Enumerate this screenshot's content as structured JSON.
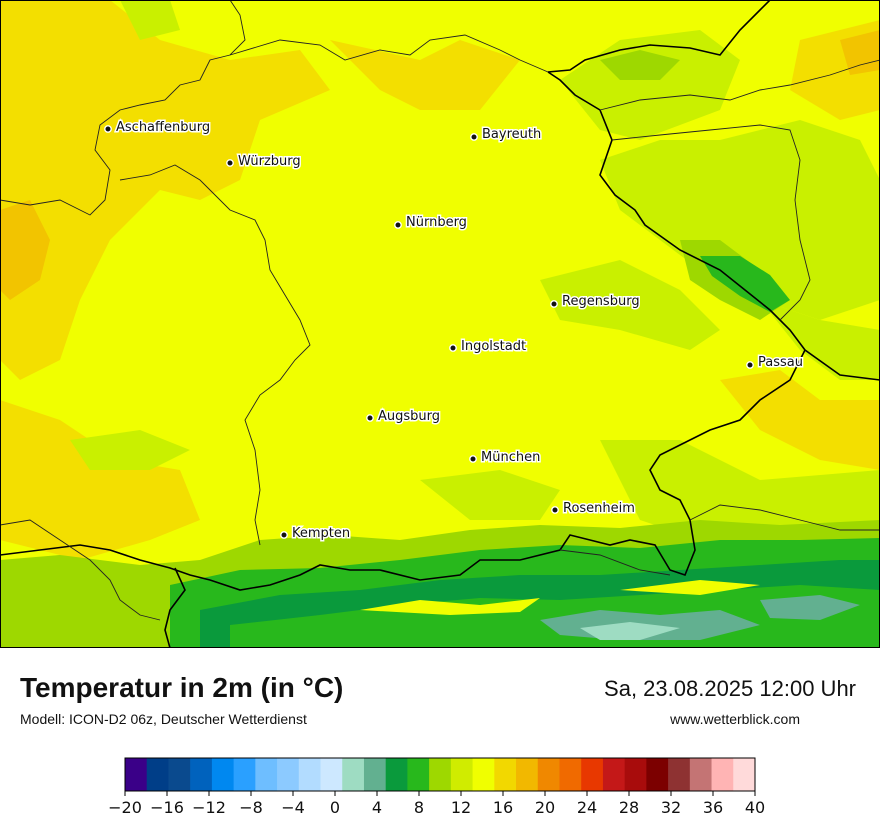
{
  "map": {
    "cities": [
      {
        "name": "Aschaffenburg"
      },
      {
        "name": "Würzburg"
      },
      {
        "name": "Bayreuth"
      },
      {
        "name": "Nürnberg"
      },
      {
        "name": "Regensburg"
      },
      {
        "name": "Ingolstadt"
      },
      {
        "name": "Passau"
      },
      {
        "name": "Augsburg"
      },
      {
        "name": "München"
      },
      {
        "name": "Rosenheim"
      },
      {
        "name": "Kempten"
      }
    ],
    "colors": {
      "base_field": "#f0ff00",
      "warm_patches": "#f3df00",
      "warmer_patches": "#f2c400",
      "cool_green": "#c9f000",
      "mountain_green": "#1eb21e",
      "mountain_dark": "#0e9a3c",
      "peaks": "#9fdcc0"
    }
  },
  "header": {
    "title": "Temperatur in 2m (in °C)",
    "subtitle": "Modell: ICON-D2 06z, Deutscher Wetterdienst",
    "datetime": "Sa, 23.08.2025 12:00 Uhr",
    "website": "www.wetterblick.com"
  },
  "legend": {
    "min": -20,
    "max": 40,
    "tick_labels": [
      "−20",
      "−16",
      "−12",
      "−8",
      "−4",
      "0",
      "4",
      "8",
      "12",
      "16",
      "20",
      "24",
      "28",
      "32",
      "36",
      "40"
    ],
    "colors": [
      "#3a0088",
      "#003e88",
      "#0a4a8e",
      "#0062bd",
      "#0088f0",
      "#2aa0ff",
      "#6ebeff",
      "#8ccaff",
      "#b2dcff",
      "#cde8ff",
      "#9edcc2",
      "#62b090",
      "#0a9a3c",
      "#28b81c",
      "#9ed800",
      "#d0ec00",
      "#f0ff00",
      "#f2d800",
      "#f2b800",
      "#f08800",
      "#f06a00",
      "#e83800",
      "#c41818",
      "#a80c0c",
      "#7c0000",
      "#8e3232",
      "#c47474",
      "#ffb4b4",
      "#ffdada"
    ]
  }
}
